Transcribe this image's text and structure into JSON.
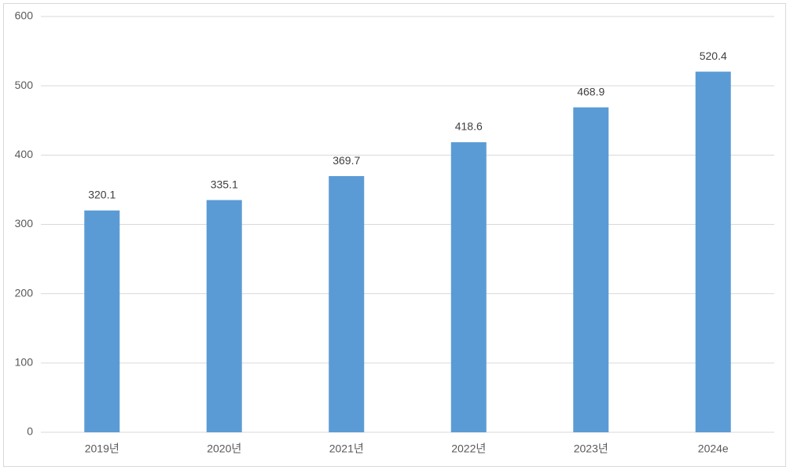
{
  "chart_data": {
    "type": "bar",
    "categories": [
      "2019년",
      "2020년",
      "2021년",
      "2022년",
      "2023년",
      "2024e"
    ],
    "values": [
      320.1,
      335.1,
      369.7,
      418.6,
      468.9,
      520.4
    ],
    "color": "#5b9bd5",
    "ylim": [
      0,
      600
    ],
    "yticks": [
      0,
      100,
      200,
      300,
      400,
      500,
      600
    ],
    "grid": true
  }
}
